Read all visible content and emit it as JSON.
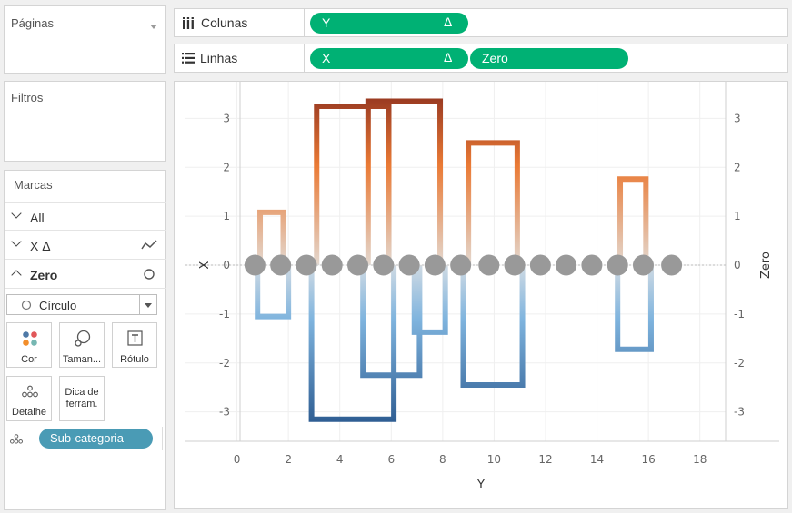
{
  "left_panel": {
    "pages_title": "Páginas",
    "filters_title": "Filtros",
    "marks_title": "Marcas",
    "marks_rows": [
      {
        "label": "All"
      },
      {
        "label": "X Δ"
      },
      {
        "label": "Zero"
      }
    ],
    "mark_type": "Círculo",
    "mark_cards": {
      "color": "Cor",
      "size": "Taman...",
      "label": "Rótulo",
      "detail": "Detalhe",
      "tooltip_line1": "Dica de",
      "tooltip_line2": "ferram."
    },
    "detail_pill": "Sub-categoria"
  },
  "shelves": {
    "columns_label": "Colunas",
    "rows_label": "Linhas",
    "columns_pills": [
      {
        "text": "Y",
        "delta": "Δ"
      }
    ],
    "rows_pills": [
      {
        "text": "X",
        "delta": "Δ"
      },
      {
        "text": "Zero"
      }
    ]
  },
  "colors": {
    "pill_green": "#00b174",
    "detail_pill": "#4a9bb5",
    "circle": "#999999",
    "warm_dark": "#9b3b22",
    "warm_light": "#ea7a35",
    "cool_dark": "#2f5e93",
    "cool_light": "#7fb4de"
  },
  "chart_data": {
    "type": "line",
    "xlabel": "Y",
    "ylabel_left": "X",
    "ylabel_right": "Zero",
    "x_ticks": [
      0,
      2,
      4,
      6,
      8,
      10,
      12,
      14,
      16,
      18
    ],
    "y_ticks": [
      3,
      2,
      1,
      0,
      -1,
      -2,
      -3
    ],
    "xlim": [
      -2,
      19
    ],
    "ylim": [
      -3.6,
      3.75
    ],
    "zero_points_x": [
      0.7,
      1.7,
      2.7,
      3.7,
      4.7,
      5.7,
      6.7,
      7.7,
      8.7,
      9.8,
      10.8,
      11.8,
      12.8,
      13.8,
      14.8,
      15.8,
      16.9
    ],
    "segments": [
      {
        "x1": 0.9,
        "x2": 1.8,
        "y": 1.08
      },
      {
        "x1": 0.8,
        "x2": 2.0,
        "y": -1.05
      },
      {
        "x1": 3.1,
        "x2": 5.9,
        "y": 3.25
      },
      {
        "x1": 2.9,
        "x2": 6.1,
        "y": -3.15
      },
      {
        "x1": 5.1,
        "x2": 7.9,
        "y": 3.35
      },
      {
        "x1": 4.9,
        "x2": 7.1,
        "y": -2.25
      },
      {
        "x1": 6.9,
        "x2": 8.1,
        "y": -1.37
      },
      {
        "x1": 9.0,
        "x2": 10.9,
        "y": 2.5
      },
      {
        "x1": 8.8,
        "x2": 11.1,
        "y": -2.45
      },
      {
        "x1": 14.9,
        "x2": 15.9,
        "y": 1.76
      },
      {
        "x1": 14.8,
        "x2": 16.1,
        "y": -1.72
      }
    ]
  }
}
